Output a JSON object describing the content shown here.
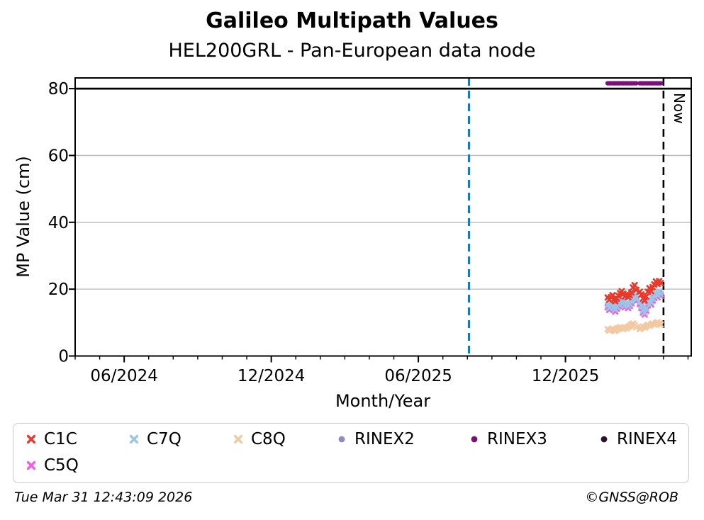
{
  "title": "Galileo Multipath Values",
  "subtitle": "HEL200GRL - Pan-European data node",
  "footer": {
    "timestamp": "Tue Mar 31 12:43:09 2026",
    "credit": "©GNSS@ROB"
  },
  "legend": {
    "items": [
      {
        "label": "C1C",
        "marker": "x",
        "color": "#e8392b"
      },
      {
        "label": "C7Q",
        "marker": "x",
        "color": "#9cc5e5"
      },
      {
        "label": "C8Q",
        "marker": "x",
        "color": "#f2c9a2"
      },
      {
        "label": "RINEX2",
        "marker": "dot",
        "color": "#8d8bc6"
      },
      {
        "label": "RINEX3",
        "marker": "dot",
        "color": "#7b0f7b"
      },
      {
        "label": "RINEX4",
        "marker": "dot",
        "color": "#2d1130"
      },
      {
        "label": "C5Q",
        "marker": "x",
        "color": "#ef5bef"
      }
    ]
  },
  "chart_data": {
    "type": "scatter",
    "title": "Galileo Multipath Values",
    "subtitle": "HEL200GRL - Pan-European data node",
    "xlabel": "Month/Year",
    "ylabel": "MP Value (cm)",
    "ylim": [
      0,
      83.2
    ],
    "xlim": [
      "2024-04-01",
      "2026-05-05"
    ],
    "grid": "horizontal-only",
    "grid_color": "#b8b8b8",
    "y_ticks": [
      0,
      20,
      40,
      60,
      80
    ],
    "x_ticks": [
      {
        "label": "06/2024",
        "date": "2024-06-01"
      },
      {
        "label": "12/2024",
        "date": "2024-12-01"
      },
      {
        "label": "06/2025",
        "date": "2025-06-01"
      },
      {
        "label": "12/2025",
        "date": "2025-12-01"
      }
    ],
    "x_minor_ticks": "monthly",
    "threshold_line": {
      "y": 80,
      "color": "#000000"
    },
    "vlines": [
      {
        "name": "reference-date-line",
        "date": "2025-08-03",
        "color": "#1f77b4",
        "style": "dashed",
        "label": ""
      },
      {
        "name": "now-line",
        "date": "2026-04-01",
        "color": "#000000",
        "style": "dashed",
        "label": "Now"
      }
    ],
    "dates_start": "2026-01-23",
    "step_days": 2,
    "draw_order": [
      "RINEX3",
      "C8Q",
      "C5Q",
      "C7Q",
      "C1C"
    ],
    "series": [
      {
        "name": "C1C",
        "marker": "x",
        "color": "#e8392b",
        "values": [
          17.5,
          16.8,
          17.6,
          18.2,
          17.0,
          16.4,
          17.2,
          18.0,
          18.8,
          19.4,
          18.6,
          17.8,
          18.4,
          17.6,
          18.2,
          19.0,
          20.5,
          21.2,
          19.8,
          19.2,
          18.4,
          17.2,
          16.6,
          17.8,
          19.2,
          20.3,
          19.4,
          20.6,
          21.4,
          22.3,
          21.6,
          22.4,
          21.8
        ]
      },
      {
        "name": "C7Q",
        "marker": "x",
        "color": "#9cc5e5",
        "values": [
          15.2,
          14.4,
          15.0,
          15.8,
          14.6,
          13.9,
          14.8,
          15.5,
          16.2,
          16.8,
          16.0,
          15.2,
          15.8,
          15.0,
          15.6,
          16.4,
          17.6,
          18.3,
          17.0,
          16.2,
          15.0,
          13.6,
          12.9,
          14.2,
          15.8,
          16.8,
          16.0,
          17.2,
          18.0,
          18.8,
          18.2,
          19.3,
          18.6
        ]
      },
      {
        "name": "C8Q",
        "marker": "x",
        "color": "#f2c9a2",
        "values": [
          8.0,
          7.6,
          7.9,
          8.2,
          7.7,
          7.5,
          7.9,
          8.3,
          8.6,
          8.4,
          8.1,
          8.5,
          8.3,
          8.7,
          9.0,
          9.4,
          9.7,
          9.2,
          8.6,
          8.1,
          8.4,
          8.8,
          8.5,
          8.9,
          9.3,
          9.0,
          9.4,
          9.7,
          9.4,
          9.8,
          10.1,
          9.7,
          9.4
        ]
      },
      {
        "name": "RINEX2",
        "marker": "dot",
        "color": "#8d8bc6",
        "values": []
      },
      {
        "name": "RINEX3",
        "marker": "dot",
        "color": "#7b0f7b",
        "values": [
          81.6,
          81.6,
          81.6,
          81.6,
          81.6,
          81.6,
          81.6,
          81.6,
          81.6,
          81.6,
          81.6,
          81.6,
          81.6,
          81.6,
          81.6,
          81.6,
          81.6,
          81.6,
          81.6,
          81.6,
          81.6,
          81.6,
          81.6,
          81.6,
          81.6,
          81.6,
          81.6,
          81.6,
          81.6,
          81.6,
          81.6,
          81.6,
          81.6
        ]
      },
      {
        "name": "RINEX4",
        "marker": "dot",
        "color": "#2d1130",
        "values": []
      },
      {
        "name": "C5Q",
        "marker": "x",
        "color": "#ef5bef",
        "values": [
          14.6,
          13.8,
          14.4,
          15.2,
          14.0,
          13.3,
          14.2,
          14.9,
          15.6,
          16.2,
          15.4,
          14.6,
          15.2,
          14.4,
          15.0,
          15.8,
          17.0,
          17.7,
          16.4,
          15.6,
          14.4,
          13.0,
          12.4,
          13.6,
          15.2,
          16.2,
          15.4,
          16.6,
          17.4,
          18.2,
          17.6,
          18.7,
          18.0
        ]
      }
    ]
  }
}
